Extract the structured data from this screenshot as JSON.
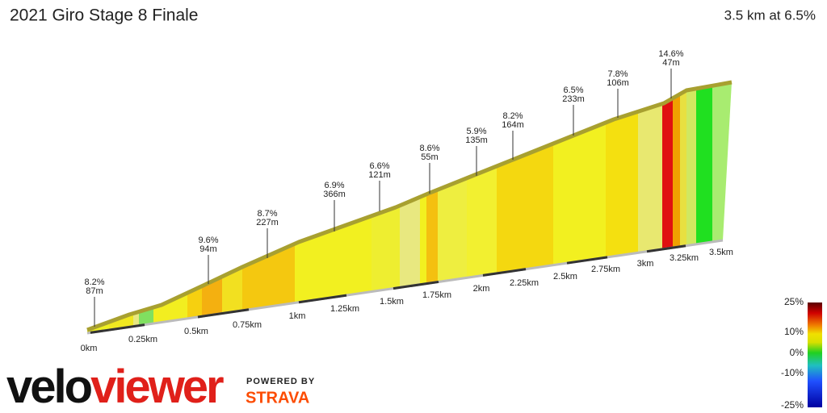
{
  "header": {
    "title": "2021 Giro Stage 8 Finale",
    "summary": "3.5 km at 6.5%"
  },
  "distance_labels": [
    "0km",
    "0.25km",
    "0.5km",
    "0.75km",
    "1km",
    "1.25km",
    "1.5km",
    "1.75km",
    "2km",
    "2.25km",
    "2.5km",
    "2.75km",
    "3km",
    "3.25km",
    "3.5km"
  ],
  "annotations": [
    {
      "grade": "8.2%",
      "length": "87m"
    },
    {
      "grade": "9.6%",
      "length": "94m"
    },
    {
      "grade": "8.7%",
      "length": "227m"
    },
    {
      "grade": "6.9%",
      "length": "366m"
    },
    {
      "grade": "6.6%",
      "length": "121m"
    },
    {
      "grade": "8.6%",
      "length": "55m"
    },
    {
      "grade": "5.9%",
      "length": "135m"
    },
    {
      "grade": "8.2%",
      "length": "164m"
    },
    {
      "grade": "6.5%",
      "length": "233m"
    },
    {
      "grade": "7.8%",
      "length": "106m"
    },
    {
      "grade": "14.6%",
      "length": "47m"
    }
  ],
  "legend": {
    "labels": [
      "25%",
      "10%",
      "0%",
      "-10%",
      "-25%"
    ]
  },
  "branding": {
    "logo_first": "velo",
    "logo_second": "viewer",
    "powered_by": "POWERED BY",
    "partner": "STRAVA"
  }
}
